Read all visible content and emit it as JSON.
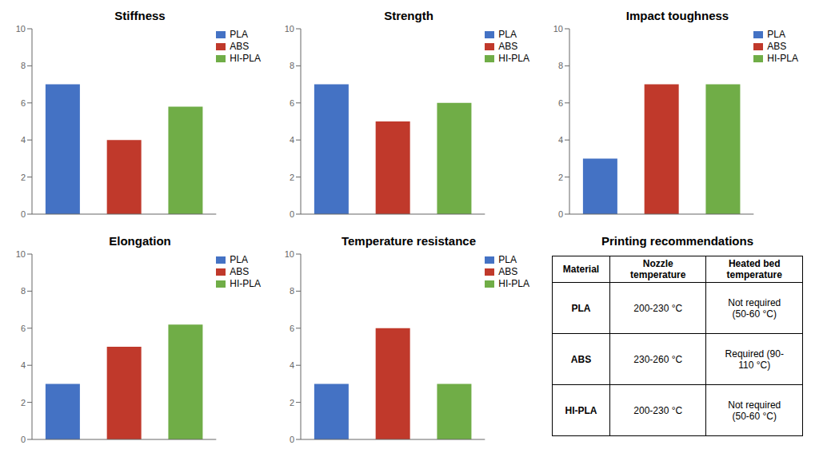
{
  "chart_data": [
    {
      "type": "bar",
      "title": "Stiffness",
      "categories": [
        "PLA",
        "ABS",
        "HI-PLA"
      ],
      "values": [
        7.0,
        4.0,
        5.8
      ],
      "colors": [
        "#4472C4",
        "#C0392B",
        "#70AD47"
      ],
      "ylim": [
        0,
        10
      ],
      "yticks": [
        0,
        2,
        4,
        6,
        8,
        10
      ],
      "legend": "upper right",
      "tick_labels": "y",
      "grid": false
    },
    {
      "type": "bar",
      "title": "Strength",
      "categories": [
        "PLA",
        "ABS",
        "HI-PLA"
      ],
      "values": [
        7.0,
        5.0,
        6.0
      ],
      "colors": [
        "#4472C4",
        "#C0392B",
        "#70AD47"
      ],
      "ylim": [
        0,
        10
      ],
      "yticks": [
        0,
        2,
        4,
        6,
        8,
        10
      ],
      "legend": "upper right",
      "tick_labels": "y",
      "grid": false
    },
    {
      "type": "bar",
      "title": "Impact toughness",
      "categories": [
        "PLA",
        "ABS",
        "HI-PLA"
      ],
      "values": [
        3.0,
        7.0,
        7.0
      ],
      "colors": [
        "#4472C4",
        "#C0392B",
        "#70AD47"
      ],
      "ylim": [
        0,
        10
      ],
      "yticks": [
        0,
        2,
        4,
        6,
        8,
        10
      ],
      "legend": "upper right",
      "tick_labels": "y",
      "grid": false
    },
    {
      "type": "bar",
      "title": "Elongation",
      "categories": [
        "PLA",
        "ABS",
        "HI-PLA"
      ],
      "values": [
        3.0,
        5.0,
        6.2
      ],
      "colors": [
        "#4472C4",
        "#C0392B",
        "#70AD47"
      ],
      "ylim": [
        0,
        10
      ],
      "yticks": [
        0,
        2,
        4,
        6,
        8,
        10
      ],
      "legend": "upper right",
      "tick_labels": "y",
      "grid": false
    },
    {
      "type": "bar",
      "title": "Temperature resistance",
      "categories": [
        "PLA",
        "ABS",
        "HI-PLA"
      ],
      "values": [
        3.0,
        6.0,
        3.0
      ],
      "colors": [
        "#4472C4",
        "#C0392B",
        "#70AD47"
      ],
      "ylim": [
        0,
        10
      ],
      "yticks": [
        0,
        2,
        4,
        6,
        8,
        10
      ],
      "legend": "upper right",
      "tick_labels": "y",
      "grid": false
    },
    {
      "type": "table",
      "title": "Printing recommendations",
      "columns": [
        "Material",
        "Nozzle\ntemperature",
        "Heated bed\ntemperature"
      ],
      "rows": [
        [
          "PLA",
          "200-230 °C",
          "Not required\n(50-60 °C)"
        ],
        [
          "ABS",
          "230-260 °C",
          "Required (90-\n110 °C)"
        ],
        [
          "HI-PLA",
          "200-230 °C",
          "Not required\n(50-60 °C)"
        ]
      ]
    }
  ]
}
